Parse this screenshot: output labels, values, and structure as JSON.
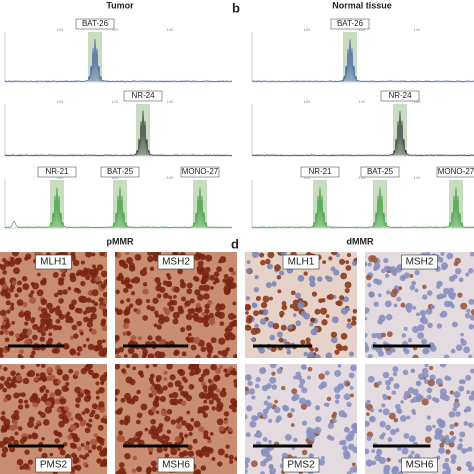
{
  "figure": {
    "panel_b_label": "b",
    "panel_d_label": "d",
    "tumor_title": "Tumor",
    "normal_title": "Normal tissue",
    "pmmr_title": "pMMR",
    "dmmr_title": "dMMR",
    "markers": [
      "BAT-26",
      "NR-24",
      "NR-21",
      "BAT-25",
      "MONO-27"
    ],
    "stains": [
      "MLH1",
      "MSH2",
      "PMS2",
      "MSH6"
    ],
    "axis_ticks": [
      "100",
      "120",
      "140"
    ]
  }
}
